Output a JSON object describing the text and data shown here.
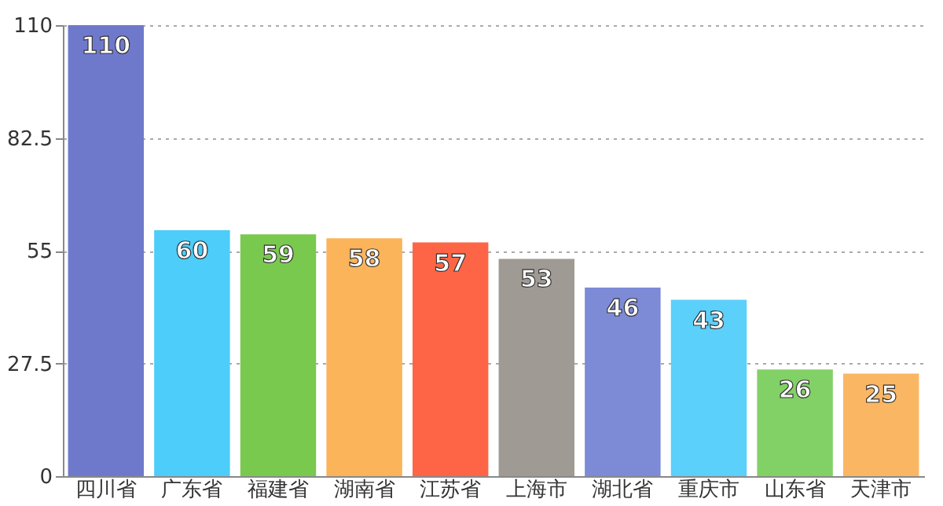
{
  "chart_data": {
    "type": "bar",
    "categories": [
      "四川省",
      "广东省",
      "福建省",
      "湖南省",
      "江苏省",
      "上海市",
      "湖北省",
      "重庆市",
      "山东省",
      "天津市"
    ],
    "values": [
      110,
      60,
      59,
      58,
      57,
      53,
      46,
      43,
      26,
      25
    ],
    "colors": [
      "#6f79cc",
      "#4ccdfa",
      "#7ac94f",
      "#fbb45a",
      "#fe6546",
      "#9f9a93",
      "#7d8ad6",
      "#5bd0fb",
      "#82d166",
      "#fbb663"
    ],
    "ylim": [
      0,
      110
    ],
    "yticks": [
      0,
      27.5,
      55,
      82.5,
      110
    ],
    "grid": "y",
    "data_labels": true
  }
}
